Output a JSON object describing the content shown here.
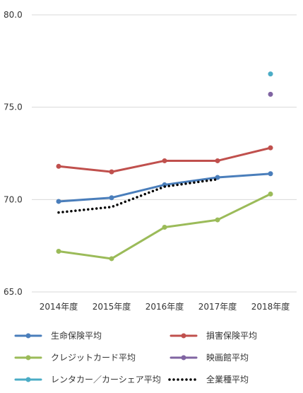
{
  "chart_data": {
    "type": "line",
    "title": "",
    "xlabel": "",
    "ylabel": "",
    "categories": [
      "2014年度",
      "2015年度",
      "2016年度",
      "2017年度",
      "2018年度"
    ],
    "ylim": [
      65.0,
      80.0
    ],
    "yticks": [
      "65.0",
      "70.0",
      "75.0",
      "80.0"
    ],
    "grid": "horizontal",
    "legend_position": "bottom",
    "series": [
      {
        "name": "生命保険平均",
        "values": [
          69.9,
          70.1,
          70.8,
          71.2,
          71.4
        ],
        "color": "#4a7ebb",
        "style": "solid",
        "marker": "circle"
      },
      {
        "name": "損害保険平均",
        "values": [
          71.8,
          71.5,
          72.1,
          72.1,
          72.8
        ],
        "color": "#c0504d",
        "style": "solid",
        "marker": "circle"
      },
      {
        "name": "クレジットカード平均",
        "values": [
          67.2,
          66.8,
          68.5,
          68.9,
          70.3
        ],
        "color": "#9bbb59",
        "style": "solid",
        "marker": "circle"
      },
      {
        "name": "映画館平均",
        "values": [
          null,
          null,
          null,
          null,
          75.7
        ],
        "color": "#8064a2",
        "style": "solid",
        "marker": "circle"
      },
      {
        "name": "レンタカー／カーシェア平均",
        "values": [
          null,
          null,
          null,
          null,
          76.8
        ],
        "color": "#4bacc6",
        "style": "solid",
        "marker": "circle"
      },
      {
        "name": "全業種平均",
        "values": [
          69.3,
          69.6,
          70.7,
          71.1,
          null
        ],
        "color": "#000000",
        "style": "dotted",
        "marker": "none"
      }
    ]
  }
}
